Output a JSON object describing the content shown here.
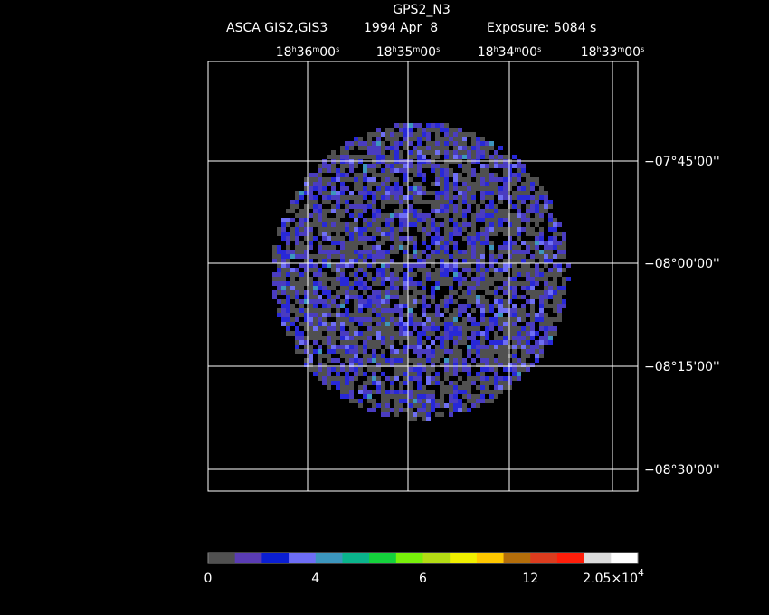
{
  "header": {
    "title": "GPS2_N3",
    "instrument": "ASCA GIS2,GIS3",
    "date": "1994 Apr  8",
    "exposure": "Exposure: 5084 s"
  },
  "ra_labels": [
    [
      "18",
      "h",
      "36",
      "m",
      "00",
      "s"
    ],
    [
      "18",
      "h",
      "35",
      "m",
      "00",
      "s"
    ],
    [
      "18",
      "h",
      "34",
      "m",
      "00",
      "s"
    ],
    [
      "18",
      "h",
      "33",
      "m",
      "00",
      "s"
    ]
  ],
  "dec_labels": [
    "−07°45'00''",
    "−08°00'00''",
    "−08°15'00''",
    "−08°30'00''"
  ],
  "colorbar": {
    "colors": [
      "#505050",
      "#5a3cb4",
      "#0a1ed2",
      "#6e6ef5",
      "#3c96be",
      "#0ab48c",
      "#14d23c",
      "#78f00a",
      "#b4dc14",
      "#f0f000",
      "#ffc800",
      "#b46e0a",
      "#dc3c1e",
      "#ff1e0a",
      "#dcdcdc",
      "#ffffff"
    ],
    "labels": [
      "0",
      "4",
      "6",
      "12"
    ],
    "max_label": {
      "mantissa": "2.05×10",
      "exponent": "4"
    }
  }
}
